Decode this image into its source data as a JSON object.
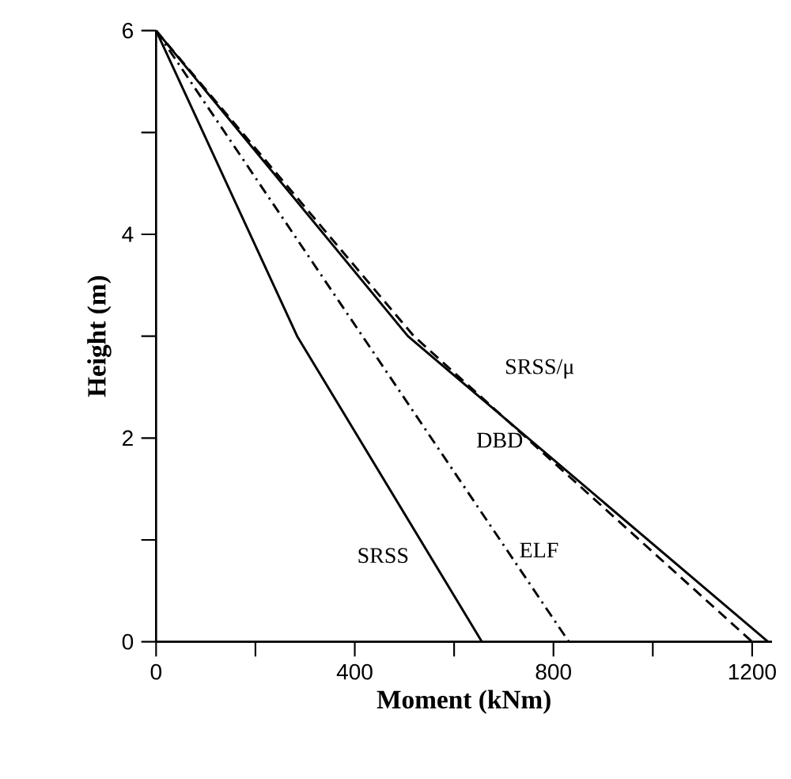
{
  "chart_data": {
    "type": "line",
    "xlabel": "Moment (kNm)",
    "ylabel": "Height (m)",
    "xlim": [
      0,
      1240
    ],
    "ylim": [
      0,
      6
    ],
    "xticks": [
      0,
      {
        "value": 200,
        "label": null
      },
      400,
      {
        "value": 600,
        "label": null
      },
      800,
      {
        "value": 1000,
        "label": null
      },
      1200
    ],
    "yticks": [
      0,
      {
        "value": 1,
        "label": null
      },
      2,
      {
        "value": 3,
        "label": null
      },
      4,
      {
        "value": 5,
        "label": null
      },
      6
    ],
    "marker": "none",
    "series": [
      {
        "name": "SRSS",
        "color": "#000000",
        "line_style": "solid",
        "x": [
          0,
          284,
          656
        ],
        "values": [
          6,
          3,
          0
        ]
      },
      {
        "name": "ELF",
        "color": "#000000",
        "line_style": "dashdot",
        "x": [
          0,
          831
        ],
        "values": [
          6,
          0
        ]
      },
      {
        "name": "DBD",
        "color": "#000000",
        "line_style": "solid",
        "x": [
          0,
          507,
          1232
        ],
        "values": [
          6,
          3,
          0
        ]
      },
      {
        "name": "SRSS/μ",
        "color": "#000000",
        "line_style": "dashed",
        "x": [
          0,
          519,
          1200
        ],
        "values": [
          6,
          3,
          0
        ]
      }
    ]
  }
}
